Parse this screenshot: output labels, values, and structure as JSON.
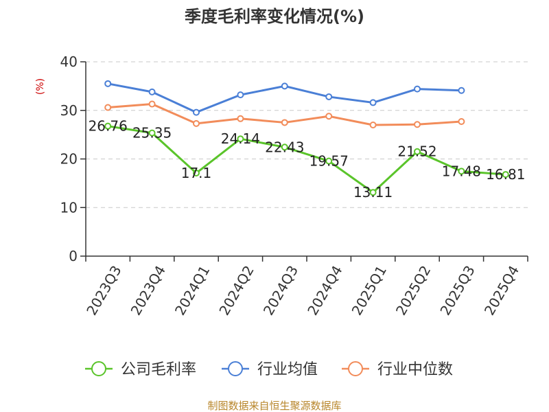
{
  "chart_data": {
    "type": "line",
    "title": "季度毛利率变化情况(%)",
    "unit_label": "(%)",
    "categories": [
      "2023Q3",
      "2023Q4",
      "2024Q1",
      "2024Q2",
      "2024Q3",
      "2024Q4",
      "2025Q1",
      "2025Q2",
      "2025Q3",
      "2025Q4"
    ],
    "ylim": [
      0,
      40
    ],
    "yticks": [
      0,
      10,
      20,
      30,
      40
    ],
    "grid": true,
    "legend_position": "bottom",
    "series": [
      {
        "name": "公司毛利率",
        "color": "#5ac42a",
        "values": [
          26.76,
          25.35,
          17.1,
          24.14,
          22.43,
          19.57,
          13.11,
          21.52,
          17.48,
          16.81
        ],
        "labels": [
          "26.76",
          "25.35",
          "17.1",
          "24.14",
          "22.43",
          "19.57",
          "13.11",
          "21.52",
          "17.48",
          "16.81"
        ]
      },
      {
        "name": "行业均值",
        "color": "#4a7fd6",
        "values": [
          35.5,
          33.8,
          29.6,
          33.2,
          35.0,
          32.8,
          31.6,
          34.4,
          34.1,
          null
        ]
      },
      {
        "name": "行业中位数",
        "color": "#f28c5a",
        "values": [
          30.6,
          31.3,
          27.3,
          28.3,
          27.5,
          28.8,
          27.0,
          27.1,
          27.7,
          null
        ]
      }
    ]
  },
  "source": "制图数据来自恒生聚源数据库"
}
